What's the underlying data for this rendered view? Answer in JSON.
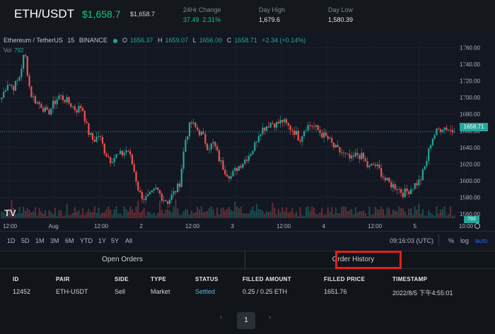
{
  "header": {
    "pair": "ETH/USDT",
    "price": "$1,658.7",
    "price_usd": "$1,658.7",
    "change_label": "24Hr Change",
    "change_value": "37.49",
    "change_pct": "2.31%",
    "high_label": "Day High",
    "high_value": "1,679.6",
    "low_label": "Day Low",
    "low_value": "1,580.39"
  },
  "chart": {
    "symbol": "Ethereum / TetherUS",
    "interval": "15",
    "exchange": "BINANCE",
    "ohlc": {
      "o_label": "O",
      "o": "1656.37",
      "h_label": "H",
      "h": "1659.07",
      "l_label": "L",
      "l": "1656.00",
      "c_label": "C",
      "c": "1658.71",
      "change": "+2.34 (+0.14%)"
    },
    "vol_label": "Vol",
    "vol_value": "792",
    "last_price_label": "1658.71",
    "last_vol_label": "792",
    "logo": "TV",
    "colors": {
      "up": "#26a69a",
      "down": "#ef5350",
      "background": "#131722"
    }
  },
  "chart_data": {
    "type": "candlestick",
    "title": "Ethereum / TetherUS",
    "y_ticks": [
      "1760.00",
      "1740.00",
      "1720.00",
      "1700.00",
      "1680.00",
      "1660.00",
      "1640.00",
      "1620.00",
      "1600.00",
      "1580.00",
      "1560.00"
    ],
    "x_ticks": [
      "12:00",
      "Aug",
      "12:00",
      "2",
      "12:00",
      "3",
      "12:00",
      "4",
      "12:00",
      "5",
      "10:00"
    ],
    "ylim": [
      1555,
      1768
    ],
    "last_price": 1658.71,
    "close_path": [
      1700,
      1718,
      1712,
      1722,
      1755,
      1705,
      1695,
      1690,
      1680,
      1692,
      1702,
      1698,
      1692,
      1685,
      1690,
      1660,
      1648,
      1655,
      1635,
      1625,
      1630,
      1632,
      1638,
      1615,
      1585,
      1578,
      1582,
      1590,
      1580,
      1575,
      1585,
      1595,
      1648,
      1670,
      1662,
      1655,
      1640,
      1645,
      1625,
      1612,
      1605,
      1615,
      1622,
      1630,
      1640,
      1660,
      1665,
      1670,
      1668,
      1672,
      1665,
      1660,
      1650,
      1665,
      1667,
      1662,
      1655,
      1650,
      1640,
      1635,
      1630,
      1625,
      1632,
      1628,
      1615,
      1620,
      1612,
      1600,
      1595,
      1592,
      1585,
      1588,
      1595,
      1600,
      1620,
      1650,
      1660,
      1665,
      1662,
      1658.71
    ]
  },
  "timeframes": {
    "items": [
      "1D",
      "5D",
      "1M",
      "3M",
      "6M",
      "YTD",
      "1Y",
      "5Y",
      "All"
    ],
    "clock": "09:16:03 (UTC)",
    "pct": "%",
    "log": "log",
    "auto": "auto"
  },
  "tabs": {
    "open_orders": "Open Orders",
    "order_history": "Order History"
  },
  "table": {
    "headers": [
      "ID",
      "PAIR",
      "SIDE",
      "TYPE",
      "STATUS",
      "FILLED AMOUNT",
      "FILLED PRICE",
      "TIMESTAMP"
    ],
    "rows": [
      [
        "12452",
        "ETH-USDT",
        "Sell",
        "Market",
        "Settled",
        "0.25 / 0.25 ETH",
        "1651.76",
        "2022/8/5 下午4:55:01"
      ]
    ]
  },
  "pagination": {
    "prev": "‹",
    "page": "1",
    "next": "›"
  }
}
